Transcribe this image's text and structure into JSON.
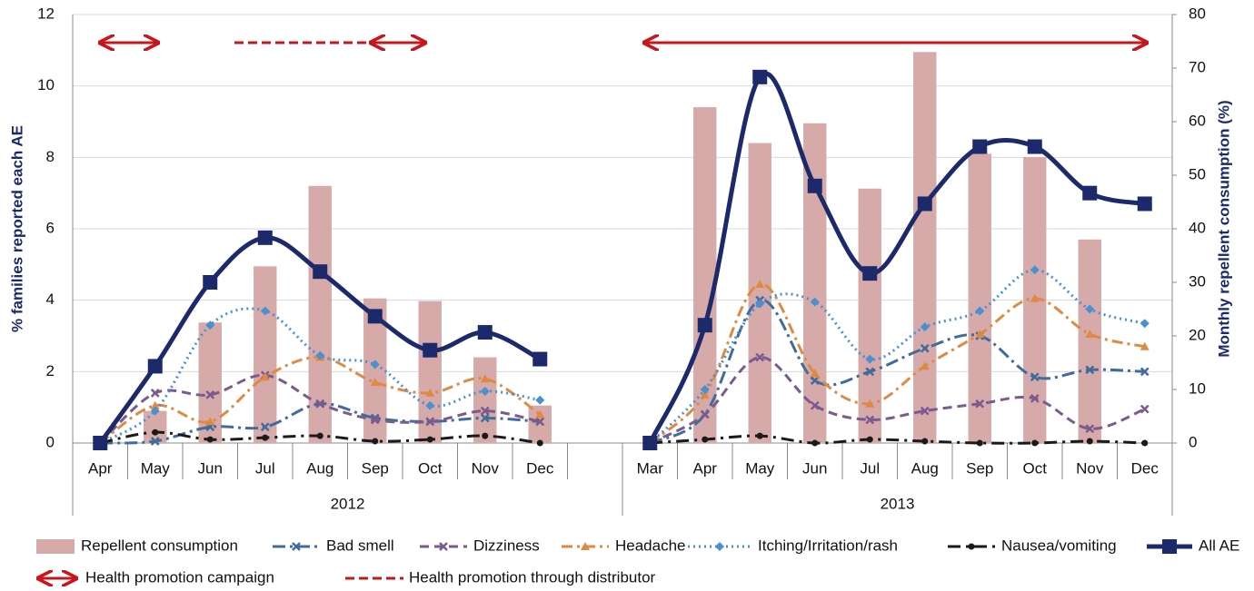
{
  "chart_data": {
    "type": "combo",
    "categories": [
      "Apr",
      "May",
      "Jun",
      "Jul",
      "Aug",
      "Sep",
      "Oct",
      "Nov",
      "Dec",
      null,
      "Mar",
      "Apr",
      "May",
      "Jun",
      "Jul",
      "Aug",
      "Sep",
      "Oct",
      "Nov",
      "Dec"
    ],
    "groups": [
      {
        "label": "2012",
        "count": 10
      },
      {
        "label": "2013",
        "count": 10
      }
    ],
    "y_label": "% families reported each AE",
    "y2_label": "Monthly repellent consumption (%)",
    "ylim": [
      0,
      12
    ],
    "yticks": [
      0,
      2,
      4,
      6,
      8,
      10,
      12
    ],
    "y2lim": [
      0,
      80
    ],
    "y2ticks": [
      0,
      10,
      20,
      30,
      40,
      50,
      60,
      70,
      80
    ],
    "series": [
      {
        "name": "Repellent consumption",
        "type": "bar",
        "axis": "y2",
        "color": "#d7aaaa",
        "values": [
          null,
          6,
          22.5,
          33,
          48,
          27,
          26.5,
          16,
          7,
          null,
          null,
          62.7,
          56,
          59.7,
          47.5,
          73,
          54,
          53.4,
          38,
          null
        ]
      },
      {
        "name": "Bad smell",
        "type": "line",
        "color": "#3f6c9b",
        "dash": "14 5 3 5",
        "marker": "x",
        "values": [
          0,
          0.05,
          0.45,
          0.45,
          1.1,
          0.7,
          0.6,
          0.7,
          0.6,
          null,
          0,
          0.8,
          4.0,
          1.75,
          2.0,
          2.65,
          3.0,
          1.85,
          2.05,
          2.0
        ]
      },
      {
        "name": "Dizziness",
        "type": "line",
        "color": "#7b5a8e",
        "dash": "10 6",
        "marker": "x",
        "values": [
          0,
          1.4,
          1.35,
          1.9,
          1.1,
          0.65,
          0.6,
          0.9,
          0.6,
          null,
          0,
          0.8,
          2.4,
          1.05,
          0.65,
          0.9,
          1.1,
          1.25,
          0.4,
          0.95
        ]
      },
      {
        "name": "Headache",
        "type": "line",
        "color": "#de8a42",
        "dash": "12 5 3 5",
        "marker": "triangle",
        "values": [
          0,
          1.05,
          0.6,
          1.85,
          2.4,
          1.7,
          1.4,
          1.8,
          0.8,
          null,
          0,
          1.35,
          4.45,
          1.95,
          1.1,
          2.15,
          3.05,
          4.05,
          3.05,
          2.7
        ]
      },
      {
        "name": "Itching/Irritation/rash",
        "type": "line",
        "color": "#4a8fd0",
        "dash": "2 4",
        "marker": "diamond",
        "values": [
          0,
          0.9,
          3.3,
          3.7,
          2.45,
          2.2,
          1.05,
          1.45,
          1.2,
          null,
          0,
          1.5,
          3.9,
          3.95,
          2.35,
          3.25,
          3.7,
          4.85,
          3.75,
          3.35
        ]
      },
      {
        "name": "Nausea/vomiting",
        "type": "line",
        "color": "#1a1a1a",
        "dash": "14 6 3 6",
        "marker": "circle",
        "values": [
          0,
          0.3,
          0.1,
          0.15,
          0.2,
          0.05,
          0.1,
          0.2,
          0.0,
          null,
          0,
          0.1,
          0.2,
          0.0,
          0.1,
          0.05,
          0.0,
          0.0,
          0.05,
          0.0
        ]
      },
      {
        "name": "All AE",
        "type": "line",
        "color": "#1c2a6b",
        "dash": "none",
        "marker": "square",
        "values": [
          0,
          2.15,
          4.5,
          5.75,
          4.8,
          3.55,
          2.6,
          3.1,
          2.35,
          null,
          0,
          3.3,
          10.25,
          7.2,
          4.75,
          6.7,
          8.3,
          8.3,
          7.0,
          6.7
        ]
      }
    ],
    "annotations": [
      {
        "label": "Health promotion campaign",
        "style": "solid",
        "color": "#c8161d"
      },
      {
        "label": "Health promotion through distributor",
        "style": "dashed",
        "color": "#c8161d"
      }
    ]
  }
}
